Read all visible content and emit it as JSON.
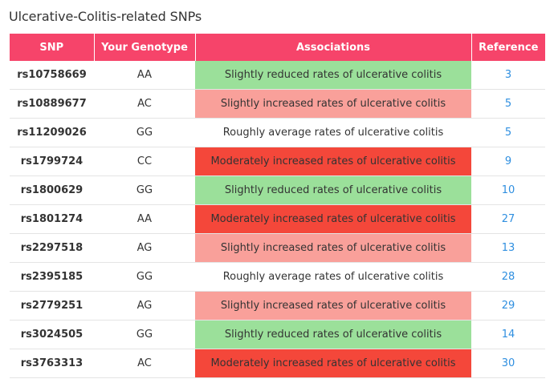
{
  "title": "Ulcerative-Colitis-related SNPs",
  "colors": {
    "header_bg": "#f6446a",
    "reduced": "#9be09a",
    "slightly_increased": "#f9a09a",
    "moderately_increased": "#f4473a",
    "average": "#ffffff",
    "link": "#2f8fe0"
  },
  "table": {
    "headers": [
      "SNP",
      "Your Genotype",
      "Associations",
      "Reference"
    ],
    "rows": [
      {
        "snp": "rs10758669",
        "genotype": "AA",
        "association": "Slightly reduced rates of ulcerative colitis",
        "level": "reduced",
        "reference": "3"
      },
      {
        "snp": "rs10889677",
        "genotype": "AC",
        "association": "Slightly increased rates of ulcerative colitis",
        "level": "slightly_increased",
        "reference": "5"
      },
      {
        "snp": "rs11209026",
        "genotype": "GG",
        "association": "Roughly average rates of ulcerative colitis",
        "level": "average",
        "reference": "5"
      },
      {
        "snp": "rs1799724",
        "genotype": "CC",
        "association": "Moderately increased rates of ulcerative colitis",
        "level": "moderately_increased",
        "reference": "9"
      },
      {
        "snp": "rs1800629",
        "genotype": "GG",
        "association": "Slightly reduced rates of ulcerative colitis",
        "level": "reduced",
        "reference": "10"
      },
      {
        "snp": "rs1801274",
        "genotype": "AA",
        "association": "Moderately increased rates of ulcerative colitis",
        "level": "moderately_increased",
        "reference": "27"
      },
      {
        "snp": "rs2297518",
        "genotype": "AG",
        "association": "Slightly increased rates of ulcerative colitis",
        "level": "slightly_increased",
        "reference": "13"
      },
      {
        "snp": "rs2395185",
        "genotype": "GG",
        "association": "Roughly average rates of ulcerative colitis",
        "level": "average",
        "reference": "28"
      },
      {
        "snp": "rs2779251",
        "genotype": "AG",
        "association": "Slightly increased rates of ulcerative colitis",
        "level": "slightly_increased",
        "reference": "29"
      },
      {
        "snp": "rs3024505",
        "genotype": "GG",
        "association": "Slightly reduced rates of ulcerative colitis",
        "level": "reduced",
        "reference": "14"
      },
      {
        "snp": "rs3763313",
        "genotype": "AC",
        "association": "Moderately increased rates of ulcerative colitis",
        "level": "moderately_increased",
        "reference": "30"
      }
    ]
  }
}
